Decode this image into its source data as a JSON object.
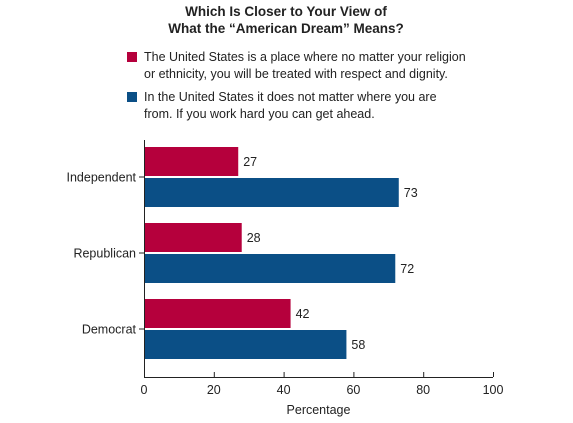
{
  "chart_data": {
    "type": "bar",
    "orientation": "horizontal",
    "title_lines": [
      "Which Is Closer to Your View of",
      "What the “American Dream” Means?"
    ],
    "categories": [
      "Independent",
      "Republican",
      "Democrat"
    ],
    "series": [
      {
        "name_lines": [
          "The United States is a place where no matter your religion",
          "or ethnicity, you will be treated with respect and dignity."
        ],
        "color": "#b5003c",
        "values": [
          27,
          28,
          42
        ]
      },
      {
        "name_lines": [
          "In the United States it does not matter where you are",
          "from. If you work hard you can get ahead."
        ],
        "color": "#0b4f86",
        "values": [
          73,
          72,
          58
        ]
      }
    ],
    "xlabel": "Percentage",
    "xlim": [
      0,
      100
    ],
    "xticks": [
      0,
      20,
      40,
      60,
      80,
      100
    ],
    "grid": false,
    "legend_position": "top"
  }
}
